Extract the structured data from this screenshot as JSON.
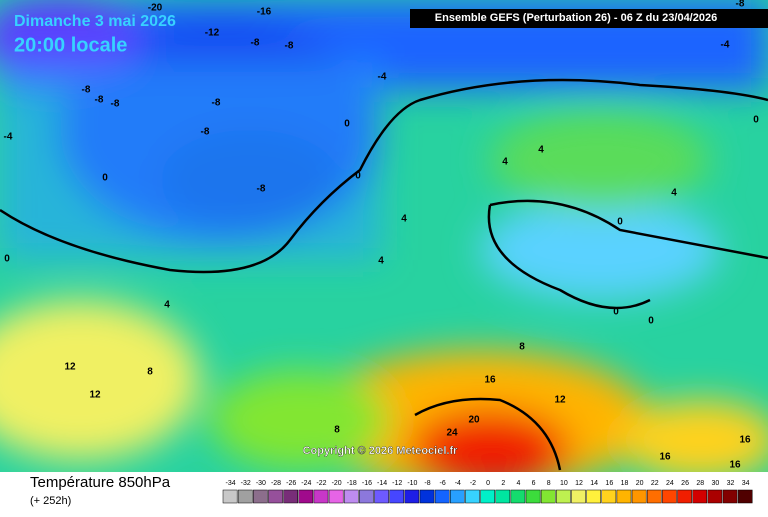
{
  "header": {
    "date": "Dimanche 3 mai 2026",
    "time": "20:00 locale",
    "model": "Ensemble GEFS  (Perturbation 26)  -  06 Z du 23/04/2026"
  },
  "footer": {
    "title": "Température 850hPa",
    "subtitle": "(+ 252h)"
  },
  "copyright": "Copyright © 2026 Meteociel.fr",
  "legend": {
    "ticks": [
      -34,
      -32,
      -30,
      -28,
      -26,
      -24,
      -22,
      -20,
      -18,
      -16,
      -14,
      -12,
      -10,
      -8,
      -6,
      -4,
      -2,
      0,
      2,
      4,
      6,
      8,
      10,
      12,
      14,
      16,
      18,
      20,
      22,
      24,
      26,
      28,
      30,
      32,
      34
    ],
    "colors": [
      "#c8c8c8",
      "#a0a0a0",
      "#8c6e8c",
      "#96509b",
      "#782d78",
      "#a00a8c",
      "#c837c8",
      "#e664e6",
      "#be8cf0",
      "#8c78dc",
      "#6e5aff",
      "#4646ff",
      "#1e1ee6",
      "#0032dc",
      "#1464ff",
      "#28a0ff",
      "#37d2ff",
      "#00f0c8",
      "#00e6a0",
      "#14dc6e",
      "#3cdc3c",
      "#82e632",
      "#bef050",
      "#f0f064",
      "#fff03c",
      "#ffd21e",
      "#ffb400",
      "#ff9600",
      "#ff6e00",
      "#ff4600",
      "#f01e00",
      "#d20000",
      "#aa0000",
      "#820000",
      "#500000"
    ]
  },
  "contour_labels": [
    -20,
    -16,
    -12,
    -8,
    -8,
    -8,
    -4,
    -4,
    -8,
    -8,
    -8,
    -8,
    -8,
    -8,
    0,
    0,
    0,
    -4,
    0,
    4,
    4,
    4,
    4,
    4,
    0,
    0,
    0,
    4,
    8,
    12,
    12,
    12,
    16,
    20,
    24,
    16,
    16,
    16,
    8,
    8,
    0
  ]
}
